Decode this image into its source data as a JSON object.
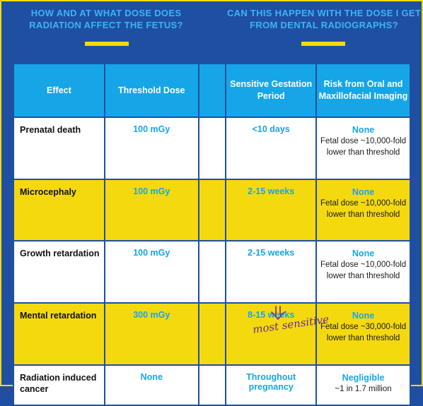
{
  "headings": {
    "left": "HOW AND AT WHAT DOSE DOES RADIATION AFFECT THE FETUS?",
    "right": "CAN THIS HAPPEN WITH THE DOSE I GET FROM DENTAL RADIOGRAPHS?"
  },
  "columns": {
    "effect": "Effect",
    "threshold": "Threshold Dose",
    "period": "Sensitive Gestation Period",
    "risk": "Risk from Oral and Maxillofacial Imaging"
  },
  "rows": [
    {
      "effect": "Prenatal death",
      "threshold": "100 mGy",
      "period": "<10 days",
      "risk": "None",
      "risk_detail": "Fetal dose ~10,000-fold lower than threshold"
    },
    {
      "effect": "Microcephaly",
      "threshold": "100 mGy",
      "period": "2-15 weeks",
      "risk": "None",
      "risk_detail": "Fetal dose ~10,000-fold lower than threshold"
    },
    {
      "effect": "Growth retardation",
      "threshold": "100 mGy",
      "period": "2-15 weeks",
      "risk": "None",
      "risk_detail": "Fetal dose ~10,000-fold lower than threshold"
    },
    {
      "effect": "Mental retardation",
      "threshold": "300 mGy",
      "period": "8-15 weeks",
      "risk": "None",
      "risk_detail": "Fetal dose ~30,000-fold lower than threshold"
    },
    {
      "effect": "Radiation induced cancer",
      "threshold": "None",
      "period": "Throughout pregnancy",
      "risk": "Negligible",
      "risk_detail": "~1 in 1.7 million"
    }
  ],
  "annotation": "most sensitive",
  "colors": {
    "background": "#1f4fa1",
    "header": "#16a6e8",
    "highlight": "#f4d90f",
    "ink": "#6b2a8f"
  }
}
